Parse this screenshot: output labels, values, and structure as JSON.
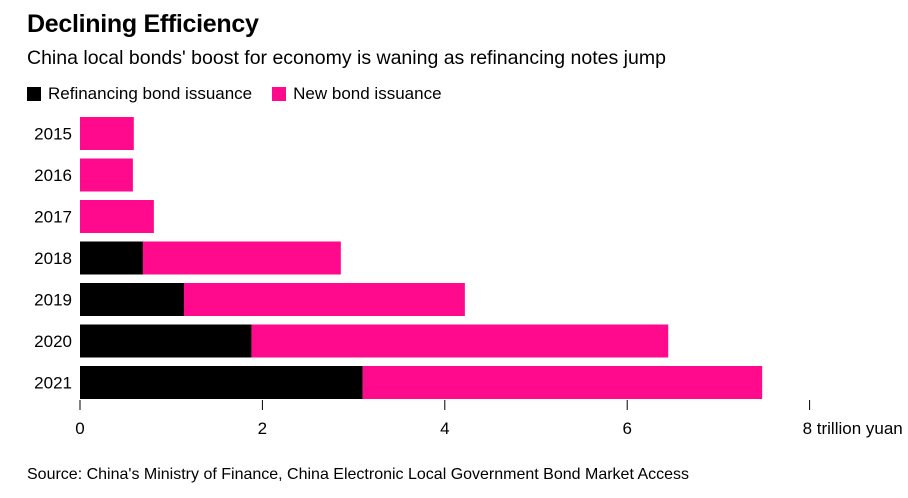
{
  "chart_data": {
    "type": "bar",
    "orientation": "horizontal",
    "stacked": true,
    "title": "Declining Efficiency",
    "subtitle": "China local bonds' boost for economy is waning as refinancing notes jump",
    "categories": [
      "2015",
      "2016",
      "2017",
      "2018",
      "2019",
      "2020",
      "2021"
    ],
    "series": [
      {
        "name": "Refinancing bond issuance",
        "color": "#000000",
        "values": [
          0,
          0,
          0,
          0.69,
          1.14,
          1.88,
          3.1
        ]
      },
      {
        "name": "New bond issuance",
        "color": "#ff0a8c",
        "values": [
          0.59,
          0.58,
          0.81,
          2.17,
          3.08,
          4.57,
          4.38
        ]
      }
    ],
    "x_ticks": [
      0,
      2,
      4,
      6,
      8
    ],
    "x_unit_label": "trillion yuan",
    "xlim": [
      0,
      8
    ],
    "grid": false,
    "legend_position": "top-left",
    "source": "Source: China's Ministry of Finance, China Electronic Local Government Bond Market Access"
  }
}
